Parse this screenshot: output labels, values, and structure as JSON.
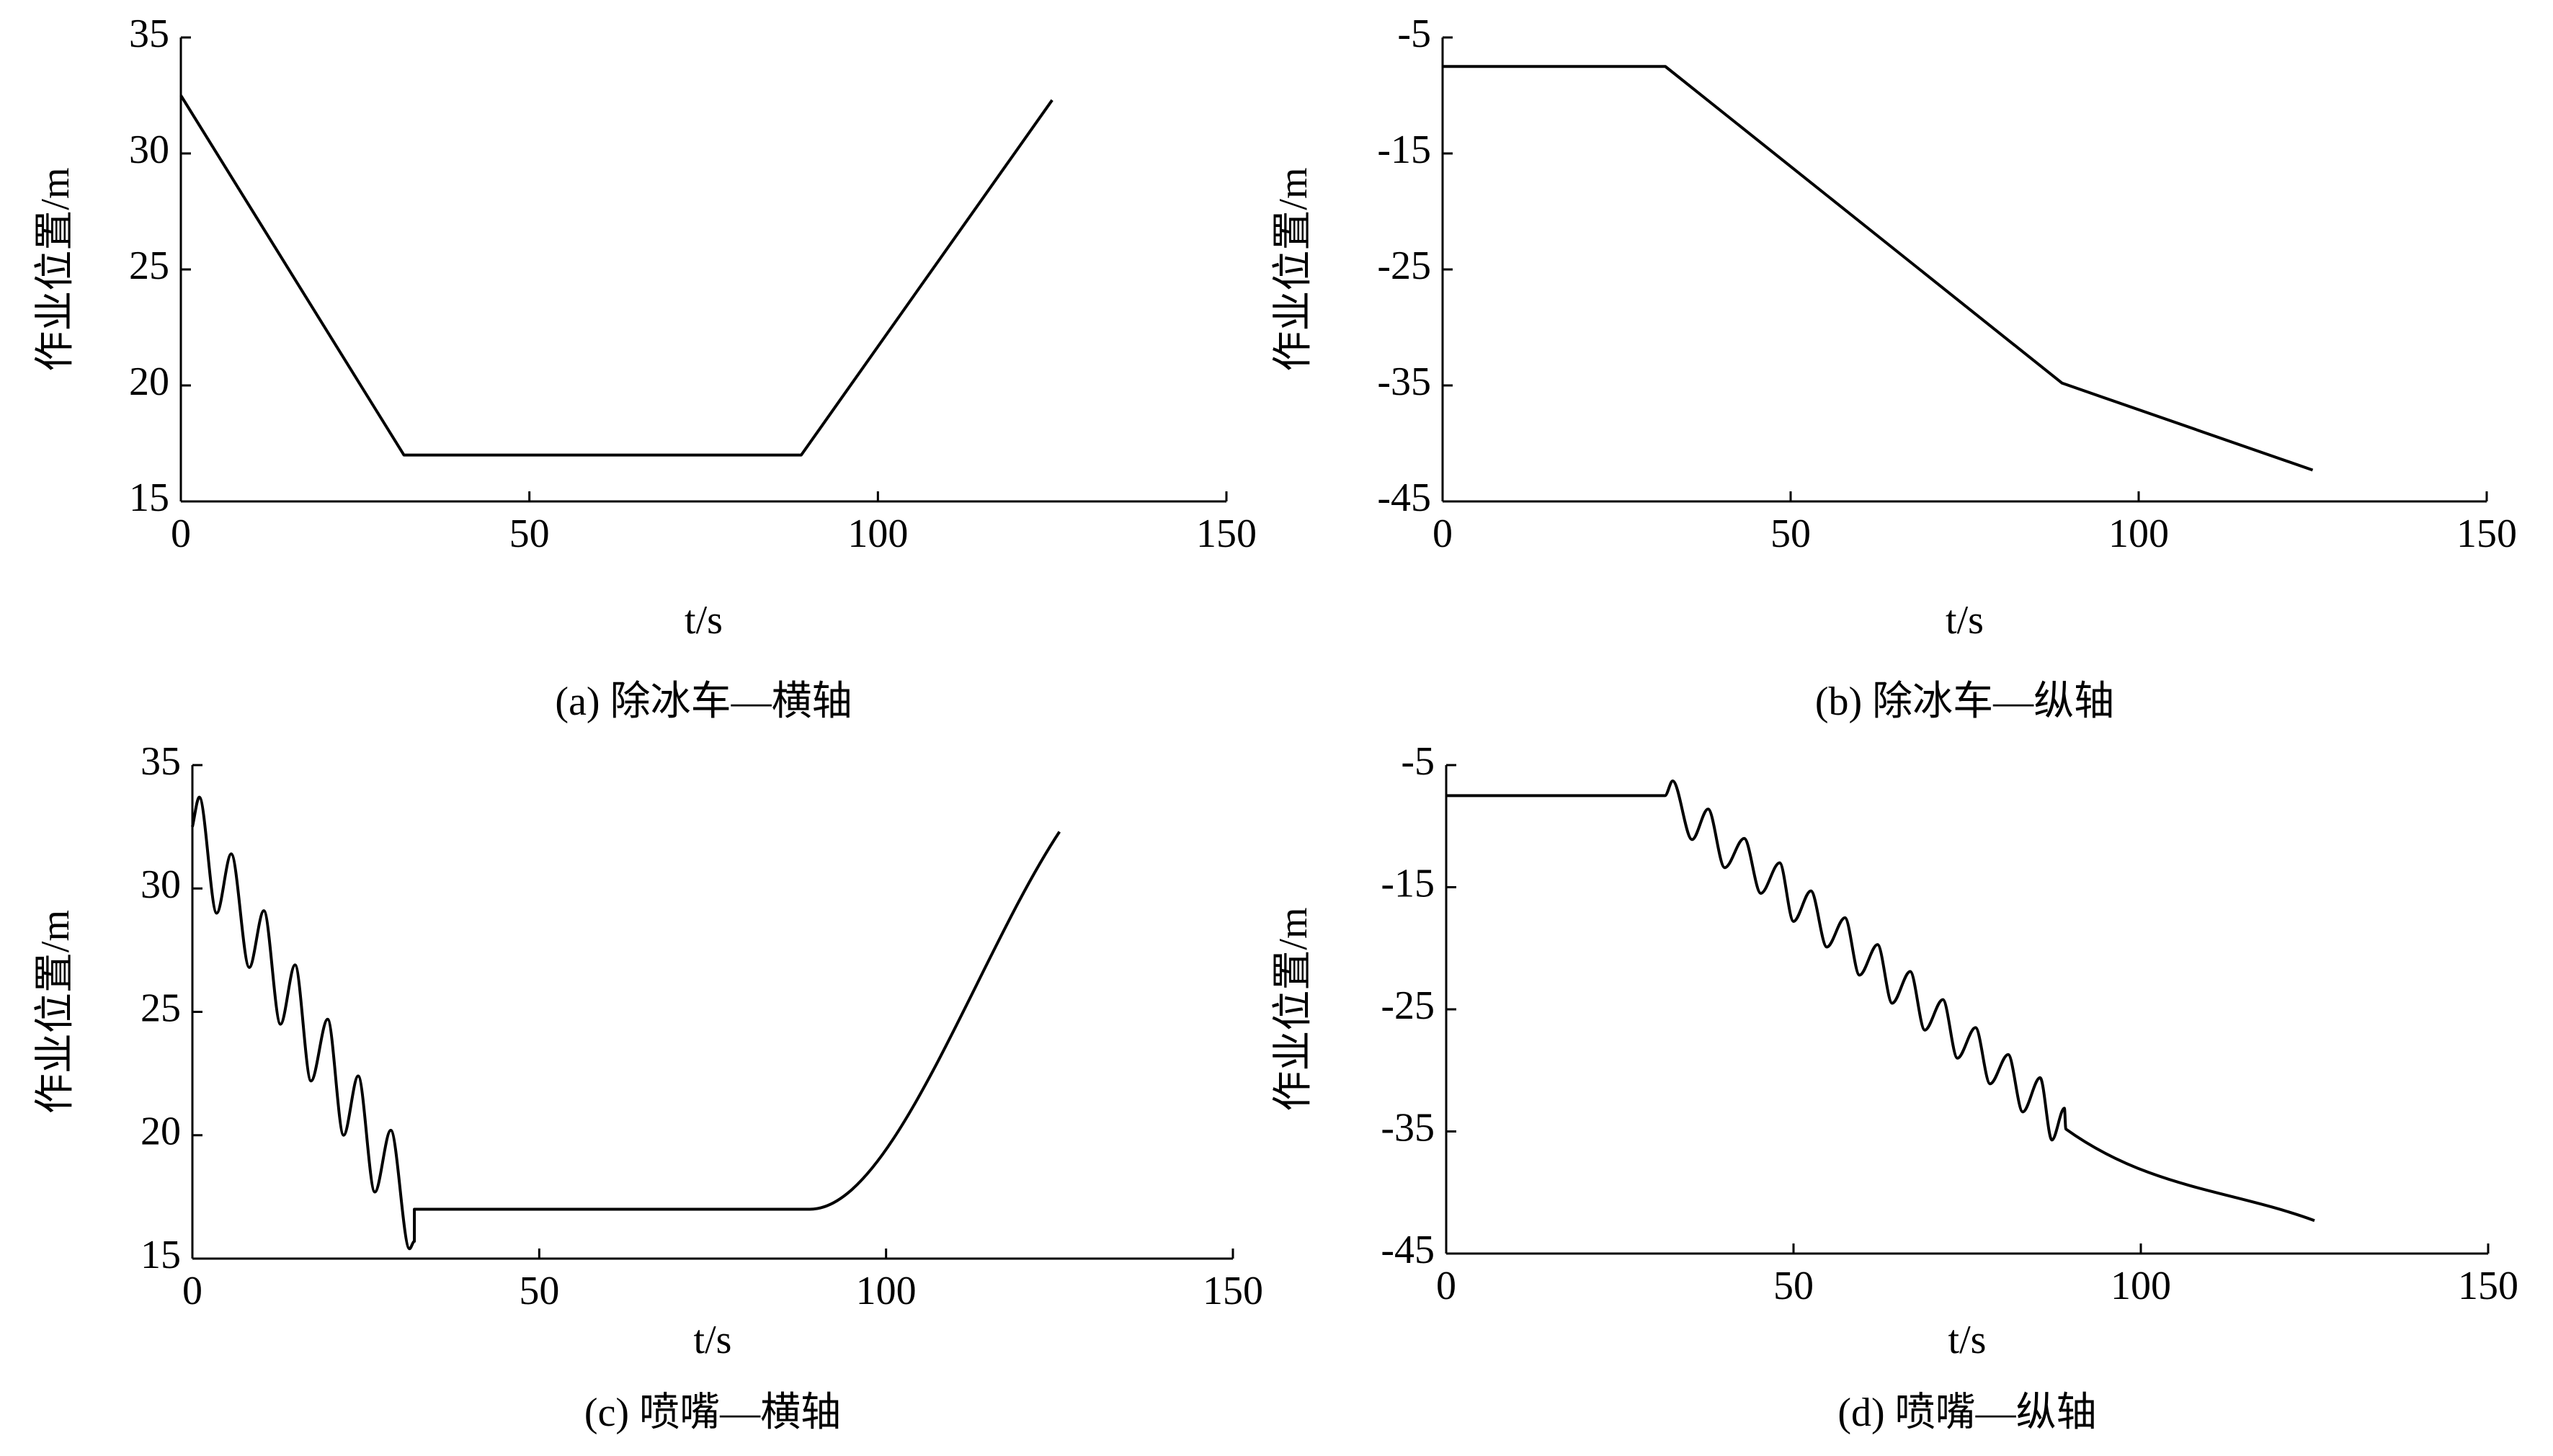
{
  "chart_data": [
    {
      "type": "line",
      "caption": "(a) 除冰车—横轴",
      "xlabel": "t/s",
      "ylabel": "作业位置/m",
      "color": "#000000",
      "x": [
        0,
        32,
        89,
        125
      ],
      "values": [
        32.5,
        17,
        17,
        32.3
      ],
      "xlim": [
        0,
        150
      ],
      "ylim": [
        15,
        35
      ],
      "xticks": [
        0,
        50,
        100,
        150
      ],
      "yticks": [
        15,
        20,
        25,
        30,
        35
      ]
    },
    {
      "type": "line",
      "caption": "(b) 除冰车—纵轴",
      "xlabel": "t/s",
      "ylabel": "作业位置/m",
      "color": "#000000",
      "x": [
        0,
        32,
        89,
        125
      ],
      "values": [
        -7.5,
        -7.5,
        -34.8,
        -42.3
      ],
      "xlim": [
        0,
        150
      ],
      "ylim": [
        -45,
        -5
      ],
      "xticks": [
        0,
        50,
        100,
        150
      ],
      "yticks": [
        -45,
        -35,
        -25,
        -15,
        -5
      ]
    },
    {
      "type": "line",
      "caption": "(c) 喷嘴—横轴",
      "xlabel": "t/s",
      "ylabel": "作业位置/m",
      "color": "#000000",
      "smooth": true,
      "x": [
        0,
        1,
        3.5,
        5.6,
        8.2,
        10.3,
        12.7,
        14.8,
        17.1,
        19.5,
        21.8,
        23.9,
        26.3,
        28.6,
        31.3,
        32,
        32,
        89,
        125
      ],
      "values": [
        32.5,
        33.7,
        29,
        31.4,
        26.8,
        29.1,
        24.5,
        26.9,
        22.2,
        24.7,
        20,
        22.4,
        17.7,
        20.2,
        15.4,
        15.7,
        17,
        17,
        32.3
      ],
      "xlim": [
        0,
        150
      ],
      "ylim": [
        15,
        35
      ],
      "xticks": [
        0,
        50,
        100,
        150
      ],
      "yticks": [
        15,
        20,
        25,
        30,
        35
      ]
    },
    {
      "type": "line",
      "caption": "(d) 喷嘴—纵轴",
      "xlabel": "t/s",
      "ylabel": "作业位置/m",
      "color": "#000000",
      "smooth": true,
      "x": [
        0,
        31.5,
        32.6,
        35.4,
        37.7,
        40.1,
        42.9,
        45.3,
        48,
        50,
        52.5,
        54.8,
        57.4,
        59.5,
        62.1,
        64.2,
        66.8,
        68.9,
        71.5,
        73.6,
        76.2,
        78.3,
        80.9,
        83,
        85.5,
        87.2,
        89,
        89.2,
        125
      ],
      "values": [
        -7.5,
        -7.5,
        -6.3,
        -11.1,
        -8.6,
        -13.4,
        -11,
        -15.5,
        -13,
        -17.8,
        -15.3,
        -19.9,
        -17.5,
        -22.2,
        -19.7,
        -24.5,
        -21.9,
        -26.7,
        -24.2,
        -29,
        -26.5,
        -31.1,
        -28.7,
        -33.4,
        -30.6,
        -35.7,
        -33.1,
        -34.8,
        -42.3
      ],
      "xlim": [
        0,
        150
      ],
      "ylim": [
        -45,
        -5
      ],
      "xticks": [
        0,
        50,
        100,
        150
      ],
      "yticks": [
        -45,
        -35,
        -25,
        -15,
        -5
      ]
    }
  ]
}
